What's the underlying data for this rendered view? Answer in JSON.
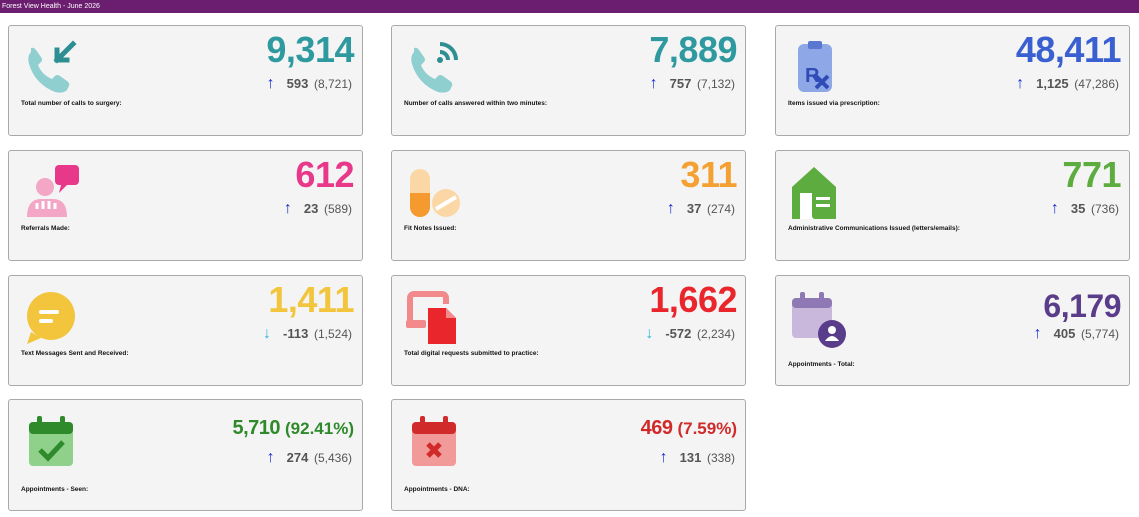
{
  "header": {
    "title": "Forest View Health - June 2026"
  },
  "cards": [
    {
      "label": "Total number of calls to surgery:",
      "value": "9,314",
      "change": "593",
      "previous": "(8,721)",
      "trend": "up",
      "color": "#2e9aa0",
      "icon": "phone-incoming-icon"
    },
    {
      "label": "Number of calls answered within two minutes:",
      "value": "7,889",
      "change": "757",
      "previous": "(7,132)",
      "trend": "up",
      "color": "#2e9aa0",
      "icon": "phone-ringing-icon"
    },
    {
      "label": "Items issued via prescription:",
      "value": "48,411",
      "change": "1,125",
      "previous": "(47,286)",
      "trend": "up",
      "color": "#3a5fd0",
      "icon": "prescription-icon"
    },
    {
      "label": "Referrals Made:",
      "value": "612",
      "change": "23",
      "previous": "(589)",
      "trend": "up",
      "color": "#e8388a",
      "icon": "referral-people-icon"
    },
    {
      "label": "Fit Notes Issued:",
      "value": "311",
      "change": "37",
      "previous": "(274)",
      "trend": "up",
      "color": "#f5a033",
      "icon": "pills-icon"
    },
    {
      "label": "Administrative Communications Issued (letters/emails):",
      "value": "771",
      "change": "35",
      "previous": "(736)",
      "trend": "up",
      "color": "#5dac3f",
      "icon": "mail-house-icon"
    },
    {
      "label": "Text Messages Sent and Received:",
      "value": "1,411",
      "change": "-113",
      "previous": "(1,524)",
      "trend": "down",
      "color": "#f2c53d",
      "icon": "chat-bubble-icon"
    },
    {
      "label": "Total digital requests submitted to practice:",
      "value": "1,662",
      "change": "-572",
      "previous": "(2,234)",
      "trend": "down",
      "color": "#e8262b",
      "icon": "digital-request-icon"
    },
    {
      "label": "Appointments - Total:",
      "value": "6,179",
      "change": "405",
      "previous": "(5,774)",
      "trend": "up",
      "color": "#5a3d8a",
      "icon": "calendar-person-icon"
    },
    {
      "label": "Appointments - Seen:",
      "value": "5,710",
      "pct": "(92.41%)",
      "change": "274",
      "previous": "(5,436)",
      "trend": "up",
      "color": "#2e8a2a",
      "icon": "calendar-check-icon"
    },
    {
      "label": "Appointments - DNA:",
      "value": "469",
      "pct": "(7.59%)",
      "change": "131",
      "previous": "(338)",
      "trend": "up",
      "color": "#d12a2a",
      "icon": "calendar-cross-icon"
    }
  ],
  "arrows": {
    "up": "↑",
    "down": "↓"
  }
}
